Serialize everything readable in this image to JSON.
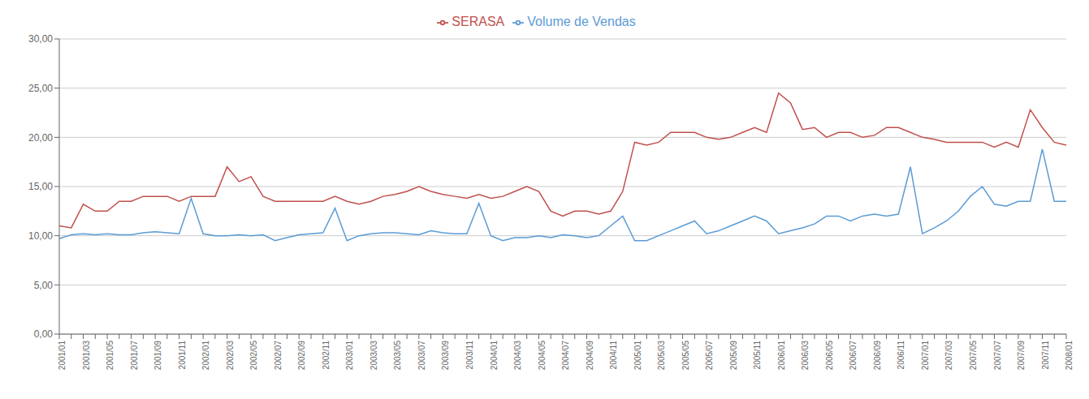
{
  "chart_data": {
    "type": "line",
    "categories": [
      "2001/01",
      null,
      "2001/03",
      null,
      "2001/05",
      null,
      "2001/07",
      null,
      "2001/09",
      null,
      "2001/11",
      null,
      "2002/01",
      null,
      "2002/03",
      null,
      "2002/05",
      null,
      "2002/07",
      null,
      "2002/09",
      null,
      "2002/11",
      null,
      "2003/01",
      null,
      "2003/03",
      null,
      "2003/05",
      null,
      "2003/07",
      null,
      "2003/09",
      null,
      "2003/11",
      null,
      "2004/01",
      null,
      "2004/03",
      null,
      "2004/05",
      null,
      "2004/07",
      null,
      "2004/09",
      null,
      "2004/11",
      null,
      "2005/01",
      null,
      "2005/03",
      null,
      "2005/05",
      null,
      "2005/07",
      null,
      "2005/09",
      null,
      "2005/11",
      null,
      "2006/01",
      null,
      "2006/03",
      null,
      "2006/05",
      null,
      "2006/07",
      null,
      "2006/09",
      null,
      "2006/11",
      null,
      "2007/01",
      null,
      "2007/03",
      null,
      "2007/05",
      null,
      "2007/07",
      null,
      "2007/09",
      null,
      "2007/11",
      null,
      "2008/01"
    ],
    "series": [
      {
        "name": "Volume de Vendas",
        "color": "#5B9BD5",
        "values": [
          9.7,
          10.1,
          10.2,
          10.1,
          10.2,
          10.1,
          10.1,
          10.3,
          10.4,
          10.3,
          10.2,
          13.8,
          10.2,
          10.0,
          10.0,
          10.1,
          10.0,
          10.1,
          9.5,
          9.8,
          10.1,
          10.2,
          10.3,
          12.8,
          9.5,
          10.0,
          10.2,
          10.3,
          10.3,
          10.2,
          10.1,
          10.5,
          10.3,
          10.2,
          10.2,
          13.3,
          10.0,
          9.5,
          9.8,
          9.8,
          10.0,
          9.8,
          10.1,
          10.0,
          9.8,
          10.0,
          11.0,
          12.0,
          9.5,
          9.5,
          10.0,
          10.5,
          11.0,
          11.5,
          10.2,
          10.5,
          11.0,
          11.5,
          12.0,
          11.5,
          10.2,
          10.5,
          10.8,
          11.2,
          12.0,
          12.0,
          11.5,
          12.0,
          12.2,
          12.0,
          12.2,
          17.0,
          10.2,
          10.8,
          11.5,
          12.5,
          14.0,
          15.0,
          13.2,
          13.0,
          13.5,
          13.5,
          18.8,
          13.5,
          13.5
        ]
      },
      {
        "name": "SERASA",
        "color": "#C0504D",
        "values": [
          11.0,
          10.8,
          13.2,
          12.5,
          12.5,
          13.5,
          13.5,
          14.0,
          14.0,
          14.0,
          13.5,
          14.0,
          14.0,
          14.0,
          17.0,
          15.5,
          16.0,
          14.0,
          13.5,
          13.5,
          13.5,
          13.5,
          13.5,
          14.0,
          13.5,
          13.2,
          13.5,
          14.0,
          14.2,
          14.5,
          15.0,
          14.5,
          14.2,
          14.0,
          13.8,
          14.2,
          13.8,
          14.0,
          14.5,
          15.0,
          14.5,
          12.5,
          12.0,
          12.5,
          12.5,
          12.2,
          12.5,
          14.5,
          19.5,
          19.2,
          19.5,
          20.5,
          20.5,
          20.5,
          20.0,
          19.8,
          20.0,
          20.5,
          21.0,
          20.5,
          24.5,
          23.5,
          20.8,
          21.0,
          20.0,
          20.5,
          20.5,
          20.0,
          20.2,
          21.0,
          21.0,
          20.5,
          20.0,
          19.8,
          19.5,
          19.5,
          19.5,
          19.5,
          19.0,
          19.5,
          19.0,
          22.8,
          21.0,
          19.5,
          19.2
        ]
      }
    ],
    "ylim": [
      0.0,
      30.0
    ],
    "yticks": [
      {
        "value": 0.0,
        "label": "0,00"
      },
      {
        "value": 5.0,
        "label": "5,00"
      },
      {
        "value": 10.0,
        "label": "10,00"
      },
      {
        "value": 15.0,
        "label": "15,00"
      },
      {
        "value": 20.0,
        "label": "20,00"
      },
      {
        "value": 25.0,
        "label": "25,00"
      },
      {
        "value": 30.0,
        "label": "30,00"
      }
    ],
    "grid": true,
    "legend": "top"
  }
}
